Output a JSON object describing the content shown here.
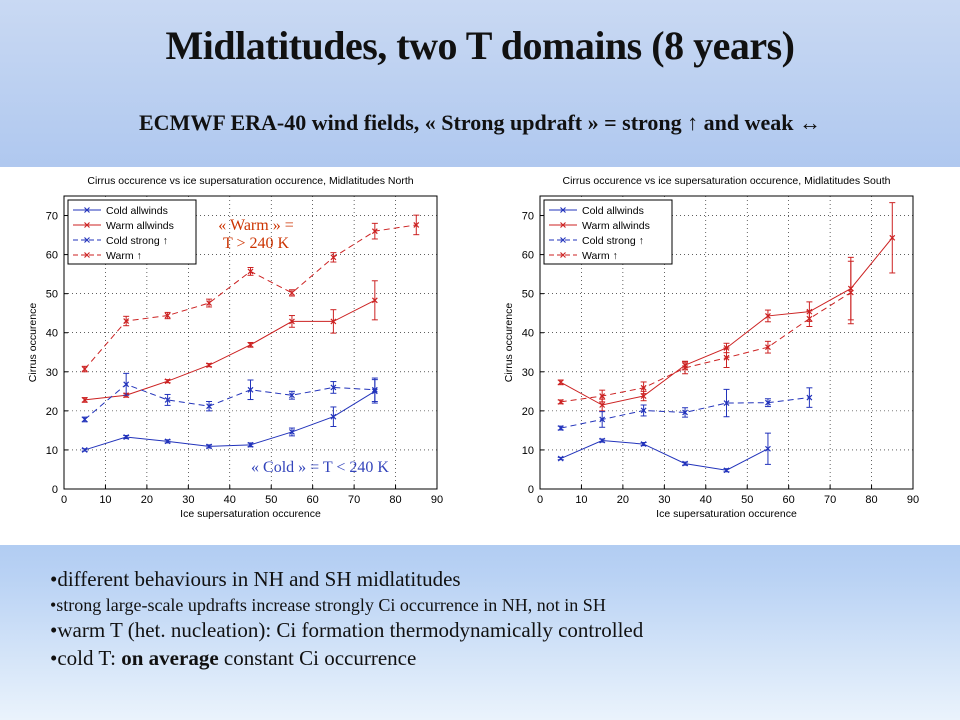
{
  "title": "Midlatitudes, two T domains (8 years)",
  "subtitle": "ECMWF ERA-40 wind fields, « Strong updraft » = strong ↑ and weak ↔",
  "annotations": {
    "warm_line1": "« Warm » =",
    "warm_line2": "T > 240 K",
    "cold": "« Cold » = T < 240 K",
    "warm_color": "#cc3300",
    "cold_color": "#3344bb"
  },
  "bullets": [
    {
      "parts": [
        {
          "text": "•different behaviours in NH and SH midlatitudes"
        }
      ]
    },
    {
      "parts": [
        {
          "text": "•strong large-scale updrafts increase strongly Ci occurrence in NH, not in SH"
        }
      ]
    },
    {
      "parts": [
        {
          "text": "•warm T (het. nucleation): Ci formation thermodynamically controlled"
        }
      ]
    },
    {
      "parts": [
        {
          "text": "•cold T: "
        },
        {
          "text": "on average",
          "bold": true
        },
        {
          "text": " constant Ci occurrence"
        }
      ]
    }
  ],
  "chart_data": [
    {
      "type": "line",
      "title": "Cirrus occurence vs ice supersaturation occurence, Midlatitudes North",
      "xlabel": "Ice supersaturation occurence",
      "ylabel": "Cirrus occurence",
      "xlim": [
        0,
        90
      ],
      "ylim": [
        0,
        75
      ],
      "xticks": [
        0,
        10,
        20,
        30,
        40,
        50,
        60,
        70,
        80,
        90
      ],
      "yticks": [
        0,
        10,
        20,
        30,
        40,
        50,
        60,
        70
      ],
      "grid": true,
      "legend_position": "top-left",
      "series": [
        {
          "name": "Cold allwinds",
          "color": "#2233bb",
          "dash": "solid",
          "marker": "x",
          "x": [
            5,
            15,
            25,
            35,
            45,
            55,
            65,
            75
          ],
          "y": [
            10,
            13.3,
            12.2,
            10.9,
            11.3,
            14.6,
            18.5,
            25
          ],
          "err": [
            0.3,
            0.4,
            0.4,
            0.4,
            0.5,
            1,
            2.5,
            3
          ]
        },
        {
          "name": "Warm allwinds",
          "color": "#cc2222",
          "dash": "solid",
          "marker": "x",
          "x": [
            5,
            15,
            25,
            35,
            45,
            55,
            65,
            75
          ],
          "y": [
            22.8,
            24,
            27.6,
            31.7,
            36.9,
            42.9,
            42.9,
            48.3
          ],
          "err": [
            0.6,
            0.5,
            0.4,
            0.4,
            0.6,
            1.5,
            3,
            5
          ]
        },
        {
          "name": "Cold strong ↑",
          "color": "#2233bb",
          "dash": "dashed",
          "marker": "x",
          "x": [
            5,
            15,
            25,
            35,
            45,
            55,
            65,
            75
          ],
          "y": [
            17.8,
            26.8,
            22.8,
            21.2,
            25.4,
            24,
            26,
            25.4
          ],
          "err": [
            0.6,
            2.8,
            1.4,
            1.2,
            2.5,
            1,
            1.5,
            3
          ]
        },
        {
          "name": "Warm ↑",
          "color": "#cc2222",
          "dash": "dashed",
          "marker": "x",
          "x": [
            5,
            15,
            25,
            35,
            45,
            55,
            65,
            75,
            85
          ],
          "y": [
            30.7,
            43,
            44.4,
            47.6,
            55.7,
            50.2,
            59.3,
            66,
            67.6
          ],
          "err": [
            0.7,
            1.2,
            0.8,
            1,
            1,
            0.8,
            1.2,
            2,
            2.5
          ]
        }
      ]
    },
    {
      "type": "line",
      "title": "Cirrus occurence vs ice supersaturation occurence, Midlatitudes South",
      "xlabel": "Ice supersaturation occurence",
      "ylabel": "Cirrus occurence",
      "xlim": [
        0,
        90
      ],
      "ylim": [
        0,
        75
      ],
      "xticks": [
        0,
        10,
        20,
        30,
        40,
        50,
        60,
        70,
        80,
        90
      ],
      "yticks": [
        0,
        10,
        20,
        30,
        40,
        50,
        60,
        70
      ],
      "grid": true,
      "legend_position": "top-left",
      "series": [
        {
          "name": "Cold allwinds",
          "color": "#2233bb",
          "dash": "solid",
          "marker": "x",
          "x": [
            5,
            15,
            25,
            35,
            45,
            55
          ],
          "y": [
            7.8,
            12.4,
            11.5,
            6.5,
            4.8,
            10.3
          ],
          "err": [
            0.3,
            0.4,
            0.4,
            0.4,
            0.4,
            4
          ]
        },
        {
          "name": "Warm allwinds",
          "color": "#cc2222",
          "dash": "solid",
          "marker": "x",
          "x": [
            5,
            15,
            25,
            35,
            45,
            55,
            65,
            75,
            85
          ],
          "y": [
            27.3,
            21.5,
            23.8,
            31.7,
            36.1,
            44.3,
            45.4,
            51.3,
            64.3
          ],
          "err": [
            0.6,
            1.5,
            1.2,
            1,
            1.2,
            1.5,
            2.5,
            8,
            9
          ]
        },
        {
          "name": "Cold strong ↑",
          "color": "#2233bb",
          "dash": "dashed",
          "marker": "x",
          "x": [
            5,
            15,
            25,
            35,
            45,
            55,
            65
          ],
          "y": [
            15.6,
            17.8,
            20.1,
            19.6,
            22,
            22.1,
            23.4
          ],
          "err": [
            0.5,
            2,
            1.4,
            1.2,
            3.5,
            1,
            2.5
          ]
        },
        {
          "name": "Warm ↑",
          "color": "#cc2222",
          "dash": "dashed",
          "marker": "x",
          "x": [
            5,
            15,
            25,
            35,
            45,
            55,
            65,
            75
          ],
          "y": [
            22.3,
            23.8,
            25.9,
            31,
            33.6,
            36.3,
            43.6,
            50.3
          ],
          "err": [
            0.5,
            1.5,
            1.5,
            1.5,
            2.5,
            1.5,
            2,
            8
          ]
        }
      ]
    }
  ]
}
